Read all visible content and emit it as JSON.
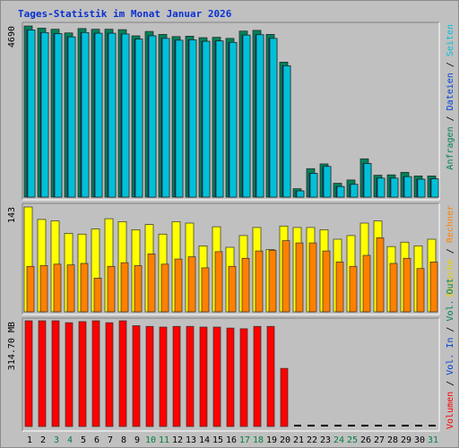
{
  "title": "Tages-Statistik im Monat Januar 2026",
  "colors": {
    "background": "#c0c0c0",
    "title": "#0a31d0",
    "anfragen": "#00805c",
    "dateien": "#0042d6",
    "seiten": "#00c0d8",
    "besuche": "#ffff00",
    "rechner": "#ff8000",
    "volume": "#ff0000",
    "dark_text": "#000000",
    "green_text": "#008040",
    "vol_in_out": "#0042d6"
  },
  "chart_data": [
    {
      "type": "bar",
      "panel": "top",
      "ylabel": "4690",
      "ylim": [
        0,
        4690
      ],
      "categories": [
        "1",
        "2",
        "3",
        "4",
        "5",
        "6",
        "7",
        "8",
        "9",
        "10",
        "11",
        "12",
        "13",
        "14",
        "15",
        "16",
        "17",
        "18",
        "19",
        "20",
        "21",
        "22",
        "23",
        "24",
        "25",
        "26",
        "27",
        "28",
        "29",
        "30",
        "31"
      ],
      "series": [
        {
          "name": "Anfragen",
          "values": [
            4690,
            4630,
            4600,
            4500,
            4620,
            4600,
            4600,
            4590,
            4420,
            4540,
            4460,
            4400,
            4410,
            4370,
            4380,
            4350,
            4550,
            4570,
            4460,
            3700,
            230,
            780,
            910,
            380,
            470,
            1050,
            600,
            610,
            680,
            580,
            580
          ]
        },
        {
          "name": "Dateien",
          "values": [
            4580,
            4510,
            4480,
            4390,
            4510,
            4490,
            4490,
            4470,
            4330,
            4420,
            4350,
            4300,
            4310,
            4270,
            4280,
            4240,
            4440,
            4450,
            4350,
            3600,
            170,
            650,
            840,
            290,
            350,
            920,
            520,
            520,
            560,
            490,
            500
          ]
        },
        {
          "name": "Seiten",
          "values": [
            4580,
            4510,
            4480,
            4390,
            4510,
            4490,
            4490,
            4470,
            4330,
            4420,
            4350,
            4300,
            4310,
            4270,
            4280,
            4240,
            4440,
            4450,
            4350,
            3600,
            170,
            650,
            840,
            290,
            350,
            920,
            520,
            520,
            560,
            490,
            500
          ]
        }
      ]
    },
    {
      "type": "bar",
      "panel": "middle",
      "ylabel": "143",
      "ylim": [
        0,
        143
      ],
      "categories": [
        "1",
        "2",
        "3",
        "4",
        "5",
        "6",
        "7",
        "8",
        "9",
        "10",
        "11",
        "12",
        "13",
        "14",
        "15",
        "16",
        "17",
        "18",
        "19",
        "20",
        "21",
        "22",
        "23",
        "24",
        "25",
        "26",
        "27",
        "28",
        "29",
        "30",
        "31"
      ],
      "series": [
        {
          "name": "Besuche",
          "values": [
            143,
            126,
            124,
            107,
            106,
            113,
            127,
            123,
            112,
            119,
            106,
            123,
            121,
            90,
            116,
            88,
            104,
            115,
            85,
            117,
            115,
            115,
            112,
            99,
            104,
            121,
            124,
            89,
            95,
            90,
            99
          ]
        },
        {
          "name": "Rechner",
          "values": [
            62,
            63,
            65,
            64,
            66,
            46,
            62,
            67,
            63,
            79,
            65,
            72,
            75,
            60,
            82,
            62,
            73,
            83,
            84,
            97,
            94,
            94,
            83,
            68,
            62,
            77,
            101,
            66,
            73,
            59,
            68
          ]
        }
      ]
    },
    {
      "type": "bar",
      "panel": "bottom",
      "ylabel": "314.70 MB",
      "ylim": [
        0,
        314.7
      ],
      "categories": [
        "1",
        "2",
        "3",
        "4",
        "5",
        "6",
        "7",
        "8",
        "9",
        "10",
        "11",
        "12",
        "13",
        "14",
        "15",
        "16",
        "17",
        "18",
        "19",
        "20",
        "21",
        "22",
        "23",
        "24",
        "25",
        "26",
        "27",
        "28",
        "29",
        "30",
        "31"
      ],
      "series": [
        {
          "name": "Volumen",
          "values": [
            314.7,
            314.7,
            314.7,
            309,
            312.2,
            314.7,
            309,
            314.7,
            300,
            298,
            296,
            298,
            298,
            296,
            296,
            293,
            291,
            298,
            298,
            173,
            0,
            0,
            0,
            0,
            0,
            0,
            0,
            0,
            0,
            0,
            0
          ]
        }
      ]
    }
  ],
  "x_labels": {
    "values": [
      "1",
      "2",
      "3",
      "4",
      "5",
      "6",
      "7",
      "8",
      "9",
      "10",
      "11",
      "12",
      "13",
      "14",
      "15",
      "16",
      "17",
      "18",
      "19",
      "20",
      "21",
      "22",
      "23",
      "24",
      "25",
      "26",
      "27",
      "28",
      "29",
      "30",
      "31"
    ],
    "weekend": [
      "3",
      "4",
      "10",
      "11",
      "17",
      "18",
      "24",
      "25",
      "31"
    ]
  },
  "legends": {
    "top": [
      {
        "text": "Anfragen",
        "color": "#00805c"
      },
      {
        "text": "Dateien",
        "color": "#0042d6"
      },
      {
        "text": "Seiten",
        "color": "#00c0d8"
      }
    ],
    "middle": [
      {
        "text": "Besuche",
        "color": "#e6d000"
      },
      {
        "text": "Rechner",
        "color": "#ff8000"
      }
    ],
    "bottom": [
      {
        "text": "Volumen",
        "color": "#ff0000"
      },
      {
        "text": "Vol. In",
        "color": "#0042d6"
      },
      {
        "text": "Vol. Out",
        "color": "#00805c"
      }
    ]
  }
}
